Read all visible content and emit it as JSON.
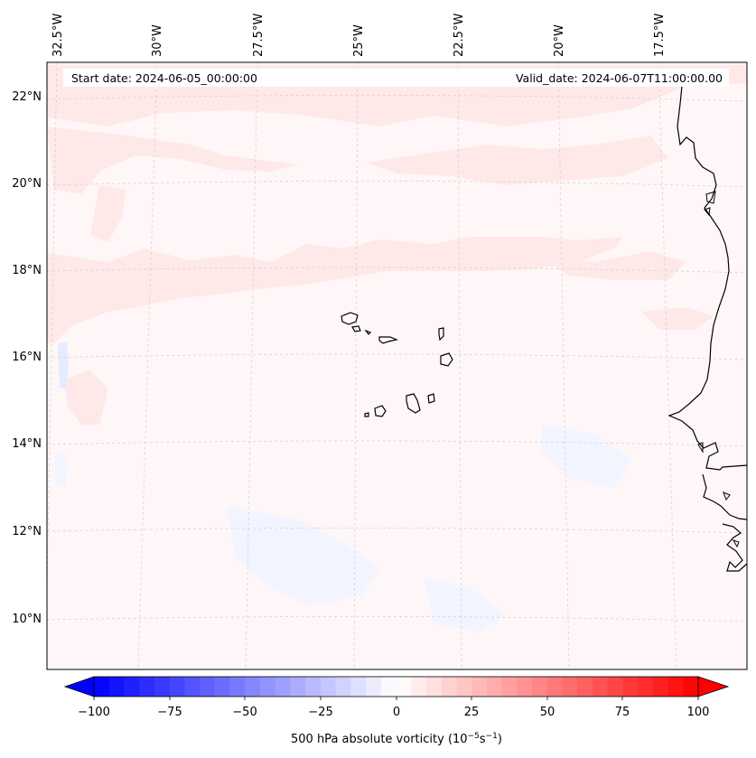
{
  "info": {
    "start_label": "Start date: 2024-06-05_00:00:00",
    "valid_label": "Valid_date: 2024-06-07T11:00:00.00"
  },
  "longitude_labels": [
    "32.5°W",
    "30°W",
    "27.5°W",
    "25°W",
    "22.5°W",
    "20°W",
    "17.5°W"
  ],
  "latitude_labels": [
    "22°N",
    "20°N",
    "18°N",
    "16°N",
    "14°N",
    "12°N",
    "10°N"
  ],
  "colorbar": {
    "ticks": [
      "−100",
      "−75",
      "−50",
      "−25",
      "0",
      "25",
      "50",
      "75",
      "100"
    ],
    "label_main": "500 hPa absolute vorticity (10",
    "label_exp1": "−5",
    "label_mid": "s",
    "label_exp2": "−1",
    "label_end": ")",
    "min": -100,
    "max": 100,
    "step": 5,
    "colors": {
      "low": "#0000ff",
      "mid": "#ffffff",
      "high": "#ff0000"
    }
  },
  "colors": {
    "coastline": "#000000",
    "gridline": "#c8c8c8",
    "positive_fill": "#ffe9e9",
    "positive_fill_strong": "#ffdede",
    "negative_fill": "#f4f7ff",
    "background_fill": "#fff7f7"
  }
}
